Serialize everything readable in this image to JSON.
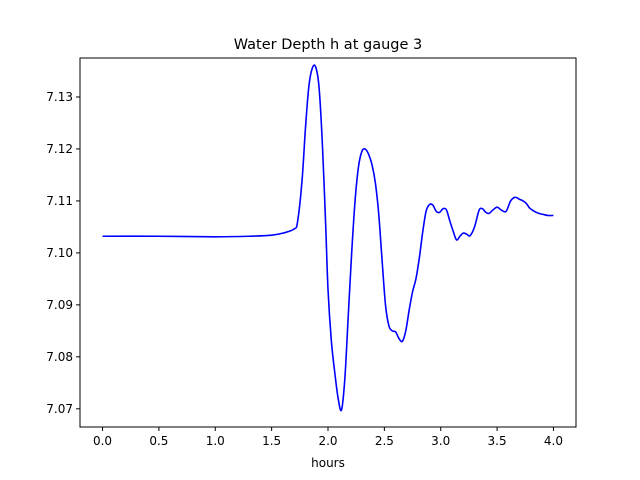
{
  "chart_data": {
    "type": "line",
    "title": "Water Depth h at gauge 3",
    "xlabel": "hours",
    "ylabel": "",
    "xlim": [
      -0.2,
      4.2
    ],
    "ylim": [
      7.0665,
      7.1375
    ],
    "xticks": [
      0.0,
      0.5,
      1.0,
      1.5,
      2.0,
      2.5,
      3.0,
      3.5,
      4.0
    ],
    "xtick_labels": [
      "0.0",
      "0.5",
      "1.0",
      "1.5",
      "2.0",
      "2.5",
      "3.0",
      "3.5",
      "4.0"
    ],
    "yticks": [
      7.07,
      7.08,
      7.09,
      7.1,
      7.11,
      7.12,
      7.13
    ],
    "ytick_labels": [
      "7.07",
      "7.08",
      "7.09",
      "7.10",
      "7.11",
      "7.12",
      "7.13"
    ],
    "grid": false,
    "series": [
      {
        "color": "#0000ff",
        "x": [
          0.0,
          0.5,
          1.0,
          1.3,
          1.5,
          1.6,
          1.7,
          1.73,
          1.77,
          1.8,
          1.83,
          1.86,
          1.89,
          1.92,
          1.95,
          1.98,
          2.0,
          2.03,
          2.06,
          2.09,
          2.12,
          2.15,
          2.18,
          2.21,
          2.24,
          2.27,
          2.3,
          2.33,
          2.36,
          2.39,
          2.42,
          2.45,
          2.48,
          2.51,
          2.54,
          2.57,
          2.6,
          2.63,
          2.66,
          2.69,
          2.72,
          2.75,
          2.78,
          2.81,
          2.84,
          2.87,
          2.9,
          2.93,
          2.96,
          2.99,
          3.02,
          3.05,
          3.08,
          3.11,
          3.14,
          3.17,
          3.2,
          3.23,
          3.26,
          3.3,
          3.34,
          3.37,
          3.4,
          3.43,
          3.46,
          3.5,
          3.54,
          3.58,
          3.62,
          3.66,
          3.7,
          3.73,
          3.76,
          3.79,
          3.83,
          3.87,
          3.91,
          3.95,
          4.0
        ],
        "y": [
          7.1032,
          7.1032,
          7.1031,
          7.1032,
          7.1034,
          7.1038,
          7.1046,
          7.106,
          7.114,
          7.124,
          7.132,
          7.1355,
          7.1358,
          7.132,
          7.121,
          7.105,
          7.093,
          7.083,
          7.077,
          7.072,
          7.0698,
          7.076,
          7.088,
          7.1,
          7.11,
          7.1165,
          7.1195,
          7.12,
          7.119,
          7.117,
          7.1135,
          7.1075,
          7.0985,
          7.09,
          7.086,
          7.085,
          7.0848,
          7.0835,
          7.083,
          7.085,
          7.089,
          7.0925,
          7.095,
          7.099,
          7.104,
          7.108,
          7.1093,
          7.1092,
          7.108,
          7.1078,
          7.1085,
          7.1083,
          7.1062,
          7.1042,
          7.1025,
          7.1032,
          7.1038,
          7.1036,
          7.1033,
          7.105,
          7.1082,
          7.1085,
          7.1078,
          7.1076,
          7.1082,
          7.1088,
          7.1082,
          7.108,
          7.11,
          7.1107,
          7.1103,
          7.11,
          7.1095,
          7.1086,
          7.108,
          7.1076,
          7.1074,
          7.1072,
          7.1072
        ]
      }
    ]
  }
}
